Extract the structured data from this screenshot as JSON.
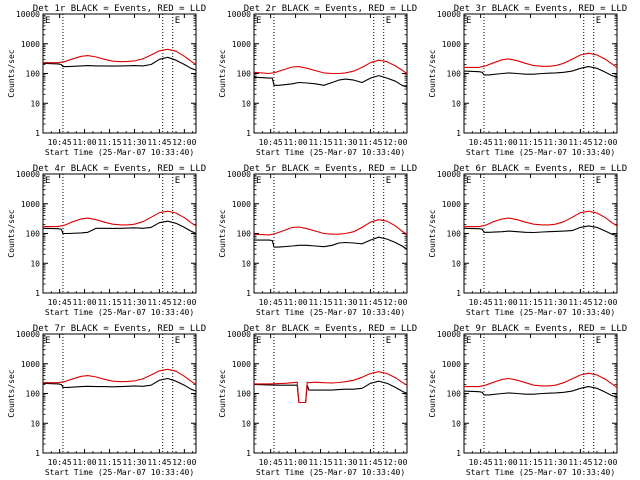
{
  "colors": {
    "events": "#000000",
    "lld": "#dd0000",
    "background": "#ffffff"
  },
  "common": {
    "xlabel": "Start Time (25-Mar-07 10:33:40)",
    "ylabel": "Counts/sec",
    "xticks": [
      "10:45",
      "11:00",
      "11:15",
      "11:30",
      "11:45",
      "12:00"
    ],
    "xtick_minutes": [
      45,
      60,
      75,
      90,
      105,
      120
    ],
    "yticks": [
      "1",
      "10",
      "100",
      "1000",
      "10000"
    ],
    "ytick_values": [
      1,
      10,
      100,
      1000,
      10000
    ],
    "xlim_minutes": [
      35,
      127
    ],
    "ylim": [
      1,
      10000
    ],
    "yscale": "log",
    "dotted_vertical_lines_minutes": [
      47,
      107,
      113
    ],
    "corner_mark": "E"
  },
  "chart_data": [
    {
      "type": "line",
      "title": "Det 1r BLACK = Events, RED = LLD",
      "series": [
        {
          "name": "Events",
          "color": "#000000",
          "x": [
            35,
            44,
            46,
            47,
            50,
            58,
            62,
            67,
            72,
            77,
            82,
            86,
            90,
            95,
            100,
            105,
            110,
            115,
            120,
            124,
            127
          ],
          "y": [
            220,
            210,
            200,
            170,
            170,
            180,
            185,
            180,
            180,
            178,
            180,
            182,
            185,
            180,
            200,
            300,
            350,
            280,
            200,
            150,
            130
          ]
        },
        {
          "name": "LLD",
          "color": "#dd0000",
          "x": [
            35,
            44,
            48,
            52,
            58,
            62,
            67,
            72,
            77,
            82,
            86,
            90,
            95,
            100,
            105,
            110,
            115,
            120,
            124,
            127
          ],
          "y": [
            230,
            230,
            250,
            300,
            380,
            400,
            360,
            300,
            260,
            250,
            255,
            265,
            310,
            420,
            580,
            650,
            560,
            380,
            260,
            200
          ]
        }
      ]
    },
    {
      "type": "line",
      "title": "Det 2r BLACK = Events, RED = LLD",
      "series": [
        {
          "name": "Events",
          "color": "#000000",
          "x": [
            35,
            44,
            46,
            47,
            50,
            58,
            62,
            67,
            72,
            77,
            82,
            86,
            90,
            95,
            100,
            105,
            110,
            115,
            120,
            124,
            127
          ],
          "y": [
            75,
            70,
            70,
            40,
            40,
            45,
            50,
            48,
            45,
            40,
            50,
            60,
            65,
            60,
            50,
            70,
            85,
            70,
            55,
            40,
            35
          ]
        },
        {
          "name": "LLD",
          "color": "#dd0000",
          "x": [
            35,
            44,
            48,
            52,
            58,
            62,
            67,
            72,
            77,
            82,
            86,
            90,
            95,
            100,
            105,
            110,
            115,
            120,
            124,
            127
          ],
          "y": [
            110,
            100,
            110,
            130,
            165,
            170,
            150,
            125,
            105,
            100,
            100,
            105,
            120,
            160,
            230,
            280,
            250,
            180,
            130,
            100
          ]
        }
      ]
    },
    {
      "type": "line",
      "title": "Det 3r BLACK = Events, RED = LLD",
      "series": [
        {
          "name": "Events",
          "color": "#000000",
          "x": [
            35,
            44,
            46,
            47,
            50,
            58,
            62,
            67,
            72,
            77,
            82,
            86,
            90,
            95,
            100,
            105,
            110,
            115,
            120,
            124,
            127
          ],
          "y": [
            120,
            115,
            110,
            90,
            90,
            100,
            105,
            100,
            95,
            95,
            100,
            102,
            105,
            110,
            120,
            150,
            170,
            150,
            110,
            85,
            75
          ]
        },
        {
          "name": "LLD",
          "color": "#dd0000",
          "x": [
            35,
            44,
            48,
            52,
            58,
            62,
            67,
            72,
            77,
            82,
            86,
            90,
            95,
            100,
            105,
            110,
            115,
            120,
            124,
            127
          ],
          "y": [
            160,
            160,
            180,
            220,
            290,
            310,
            270,
            220,
            185,
            175,
            175,
            185,
            220,
            300,
            420,
            480,
            420,
            300,
            210,
            160
          ]
        }
      ]
    },
    {
      "type": "line",
      "title": "Det 4r BLACK = Events, RED = LLD",
      "series": [
        {
          "name": "Events",
          "color": "#000000",
          "x": [
            35,
            44,
            46,
            47,
            50,
            58,
            62,
            67,
            72,
            77,
            82,
            86,
            90,
            95,
            100,
            105,
            110,
            115,
            120,
            124,
            127
          ],
          "y": [
            150,
            145,
            140,
            100,
            100,
            105,
            110,
            150,
            150,
            148,
            150,
            152,
            155,
            150,
            160,
            230,
            260,
            220,
            160,
            120,
            100
          ]
        },
        {
          "name": "LLD",
          "color": "#dd0000",
          "x": [
            35,
            44,
            48,
            52,
            58,
            62,
            67,
            72,
            77,
            82,
            86,
            90,
            95,
            100,
            105,
            110,
            115,
            120,
            124,
            127
          ],
          "y": [
            170,
            170,
            190,
            240,
            310,
            330,
            290,
            240,
            205,
            195,
            195,
            205,
            250,
            350,
            500,
            560,
            490,
            340,
            230,
            180
          ]
        }
      ]
    },
    {
      "type": "line",
      "title": "Det 5r BLACK = Events, RED = LLD",
      "series": [
        {
          "name": "Events",
          "color": "#000000",
          "x": [
            35,
            44,
            46,
            47,
            50,
            58,
            62,
            67,
            72,
            77,
            82,
            86,
            90,
            95,
            100,
            105,
            110,
            115,
            120,
            124,
            127
          ],
          "y": [
            60,
            60,
            58,
            35,
            35,
            38,
            40,
            40,
            38,
            36,
            40,
            48,
            50,
            48,
            45,
            60,
            75,
            65,
            50,
            38,
            30
          ]
        },
        {
          "name": "LLD",
          "color": "#dd0000",
          "x": [
            35,
            44,
            48,
            52,
            58,
            62,
            67,
            72,
            77,
            82,
            86,
            90,
            95,
            100,
            105,
            110,
            115,
            120,
            124,
            127
          ],
          "y": [
            95,
            90,
            100,
            120,
            160,
            165,
            145,
            120,
            100,
            95,
            95,
            100,
            115,
            160,
            240,
            290,
            260,
            180,
            120,
            95
          ]
        }
      ]
    },
    {
      "type": "line",
      "title": "Det 6r BLACK = Events, RED = LLD",
      "series": [
        {
          "name": "Events",
          "color": "#000000",
          "x": [
            35,
            44,
            46,
            47,
            50,
            58,
            62,
            67,
            72,
            77,
            82,
            86,
            90,
            95,
            100,
            105,
            110,
            115,
            120,
            124,
            127
          ],
          "y": [
            150,
            145,
            140,
            110,
            110,
            115,
            120,
            115,
            110,
            108,
            112,
            115,
            118,
            120,
            125,
            160,
            180,
            160,
            120,
            95,
            85
          ]
        },
        {
          "name": "LLD",
          "color": "#dd0000",
          "x": [
            35,
            44,
            48,
            52,
            58,
            62,
            67,
            72,
            77,
            82,
            86,
            90,
            95,
            100,
            105,
            110,
            115,
            120,
            124,
            127
          ],
          "y": [
            170,
            170,
            190,
            240,
            310,
            330,
            290,
            240,
            205,
            195,
            195,
            205,
            250,
            350,
            500,
            560,
            490,
            340,
            230,
            180
          ]
        }
      ]
    },
    {
      "type": "line",
      "title": "Det 7r BLACK = Events, RED = LLD",
      "series": [
        {
          "name": "Events",
          "color": "#000000",
          "x": [
            35,
            44,
            46,
            47,
            50,
            58,
            62,
            67,
            72,
            77,
            82,
            86,
            90,
            95,
            100,
            105,
            110,
            115,
            120,
            124,
            127
          ],
          "y": [
            220,
            210,
            200,
            160,
            160,
            170,
            175,
            170,
            170,
            168,
            170,
            175,
            180,
            175,
            190,
            280,
            320,
            260,
            190,
            140,
            120
          ]
        },
        {
          "name": "LLD",
          "color": "#dd0000",
          "x": [
            35,
            44,
            48,
            52,
            58,
            62,
            67,
            72,
            77,
            82,
            86,
            90,
            95,
            100,
            105,
            110,
            115,
            120,
            124,
            127
          ],
          "y": [
            230,
            230,
            250,
            300,
            380,
            400,
            360,
            300,
            260,
            250,
            255,
            265,
            310,
            420,
            580,
            650,
            560,
            380,
            260,
            200
          ]
        }
      ]
    },
    {
      "type": "line",
      "title": "Det 8r BLACK = Events, RED = LLD",
      "series": [
        {
          "name": "Events",
          "color": "#000000",
          "x": [
            35,
            44,
            50,
            54,
            58,
            61,
            62,
            63,
            66,
            67,
            68,
            70,
            72,
            77,
            82,
            86,
            90,
            95,
            100,
            105,
            110,
            115,
            120,
            124,
            127
          ],
          "y": [
            200,
            195,
            190,
            190,
            190,
            190,
            50,
            50,
            50,
            190,
            130,
            130,
            130,
            130,
            130,
            135,
            140,
            140,
            150,
            220,
            260,
            220,
            160,
            120,
            100
          ]
        },
        {
          "name": "LLD",
          "color": "#dd0000",
          "x": [
            35,
            44,
            50,
            54,
            58,
            61,
            62,
            63,
            66,
            67,
            68,
            72,
            77,
            82,
            86,
            90,
            95,
            100,
            105,
            110,
            115,
            120,
            124,
            127
          ],
          "y": [
            210,
            210,
            215,
            220,
            230,
            240,
            50,
            50,
            50,
            240,
            230,
            240,
            230,
            225,
            235,
            250,
            280,
            350,
            470,
            540,
            470,
            340,
            240,
            190
          ]
        }
      ]
    },
    {
      "type": "line",
      "title": "Det 9r BLACK = Events, RED = LLD",
      "series": [
        {
          "name": "Events",
          "color": "#000000",
          "x": [
            35,
            44,
            46,
            47,
            50,
            58,
            62,
            67,
            72,
            77,
            82,
            86,
            90,
            95,
            100,
            105,
            110,
            115,
            120,
            124,
            127
          ],
          "y": [
            120,
            115,
            110,
            90,
            90,
            100,
            105,
            100,
            95,
            95,
            100,
            102,
            105,
            110,
            120,
            150,
            170,
            150,
            110,
            85,
            75
          ]
        },
        {
          "name": "LLD",
          "color": "#dd0000",
          "x": [
            35,
            44,
            48,
            52,
            58,
            62,
            67,
            72,
            77,
            82,
            86,
            90,
            95,
            100,
            105,
            110,
            115,
            120,
            124,
            127
          ],
          "y": [
            170,
            170,
            190,
            230,
            300,
            320,
            280,
            230,
            190,
            180,
            180,
            190,
            230,
            310,
            420,
            480,
            420,
            300,
            210,
            160
          ]
        }
      ]
    }
  ]
}
